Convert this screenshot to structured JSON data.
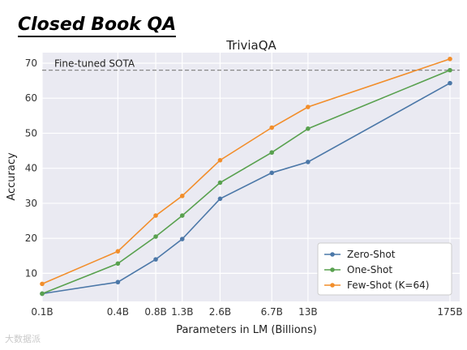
{
  "slide": {
    "heading": "Closed Book QA",
    "watermark": "大数据派"
  },
  "chart_data": {
    "type": "line",
    "title": "TriviaQA",
    "xlabel": "Parameters in LM (Billions)",
    "ylabel": "Accuracy",
    "categories": [
      "0.1B",
      "0.4B",
      "0.8B",
      "1.3B",
      "2.6B",
      "6.7B",
      "13B",
      "175B"
    ],
    "x_billions": [
      0.1,
      0.4,
      0.8,
      1.3,
      2.6,
      6.7,
      13,
      175
    ],
    "x_scale": "log",
    "ylim": [
      2,
      73
    ],
    "yticks": [
      10,
      20,
      30,
      40,
      50,
      60,
      70
    ],
    "grid": true,
    "legend_position": "lower-right",
    "reference_line": {
      "label": "Fine-tuned SOTA",
      "value": 68
    },
    "series": [
      {
        "name": "Zero-Shot",
        "color": "#4c78a8",
        "values": [
          4.2,
          7.5,
          14.0,
          19.8,
          31.3,
          38.7,
          41.8,
          64.3
        ]
      },
      {
        "name": "One-Shot",
        "color": "#59a14f",
        "values": [
          4.2,
          12.8,
          20.5,
          26.5,
          35.9,
          44.5,
          51.3,
          68.0
        ]
      },
      {
        "name": "Few-Shot (K=64)",
        "color": "#f28e2b",
        "values": [
          7.0,
          16.3,
          26.5,
          32.1,
          42.3,
          51.6,
          57.5,
          71.2
        ]
      }
    ]
  }
}
